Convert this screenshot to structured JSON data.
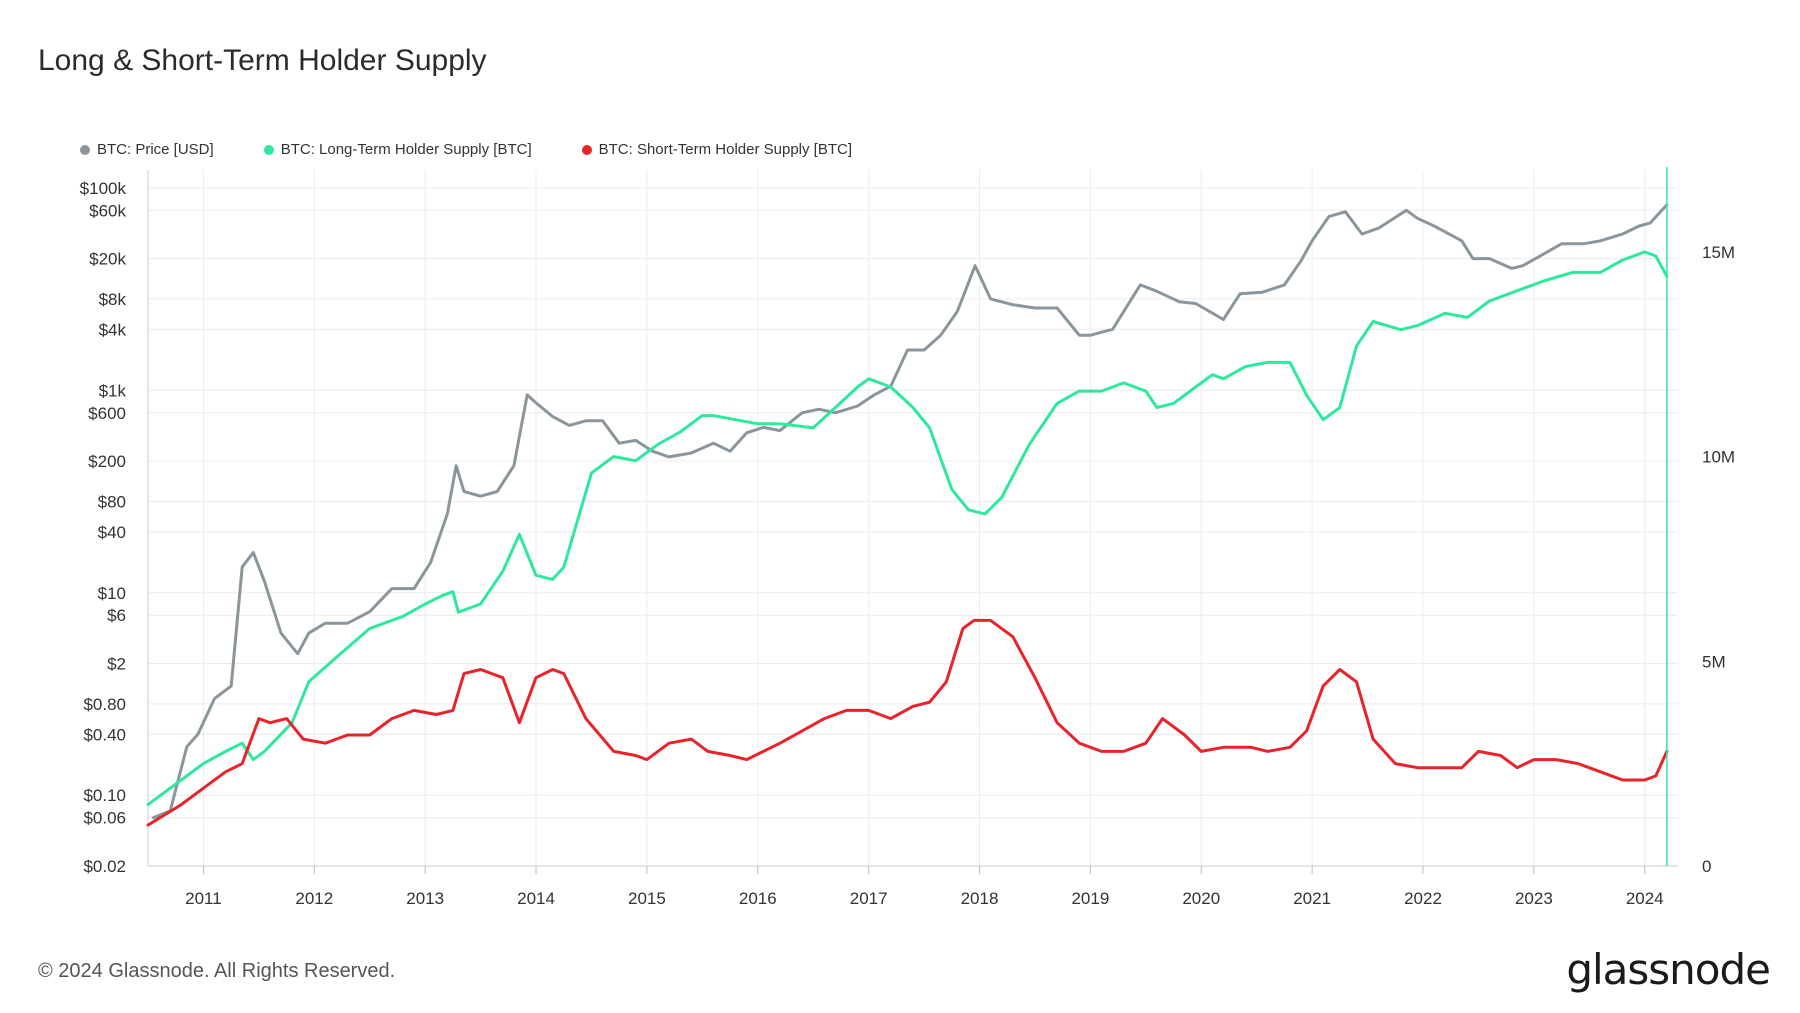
{
  "title": "Long & Short-Term Holder Supply",
  "footer": "© 2024 Glassnode. All Rights Reserved.",
  "logo_text": "glassnode",
  "chart_data": {
    "type": "line",
    "title": "Long & Short-Term Holder Supply",
    "x_range": [
      2010.5,
      2024.3
    ],
    "x_ticks": [
      "2011",
      "2012",
      "2013",
      "2014",
      "2015",
      "2016",
      "2017",
      "2018",
      "2019",
      "2020",
      "2021",
      "2022",
      "2023",
      "2024"
    ],
    "y_left": {
      "scale": "log",
      "range": [
        0.02,
        150000
      ],
      "tick_labels": [
        "$100k",
        "$60k",
        "$20k",
        "$8k",
        "$4k",
        "$1k",
        "$600",
        "$200",
        "$80",
        "$40",
        "$10",
        "$6",
        "$2",
        "$0.80",
        "$0.40",
        "$0.10",
        "$0.06",
        "$0.02"
      ],
      "tick_values": [
        100000,
        60000,
        20000,
        8000,
        4000,
        1000,
        600,
        200,
        80,
        40,
        10,
        6,
        2,
        0.8,
        0.4,
        0.1,
        0.06,
        0.02
      ]
    },
    "y_right": {
      "scale": "linear",
      "range": [
        0,
        17000000
      ],
      "tick_labels": [
        "15M",
        "10M",
        "5M",
        "0"
      ],
      "tick_values": [
        15000000,
        10000000,
        5000000,
        0
      ]
    },
    "grid": true,
    "legend_position": "top-left",
    "series": [
      {
        "name": "BTC: Price [USD]",
        "color": "#8a969c",
        "axis": "left",
        "x": [
          2010.55,
          2010.7,
          2010.85,
          2010.95,
          2011.1,
          2011.25,
          2011.35,
          2011.45,
          2011.55,
          2011.7,
          2011.85,
          2011.95,
          2012.1,
          2012.3,
          2012.5,
          2012.7,
          2012.9,
          2013.05,
          2013.2,
          2013.28,
          2013.35,
          2013.5,
          2013.65,
          2013.8,
          2013.92,
          2014.0,
          2014.15,
          2014.3,
          2014.45,
          2014.6,
          2014.75,
          2014.9,
          2015.05,
          2015.2,
          2015.4,
          2015.6,
          2015.75,
          2015.9,
          2016.05,
          2016.2,
          2016.4,
          2016.55,
          2016.7,
          2016.9,
          2017.05,
          2017.2,
          2017.35,
          2017.5,
          2017.65,
          2017.8,
          2017.96,
          2018.1,
          2018.3,
          2018.5,
          2018.7,
          2018.9,
          2019.0,
          2019.2,
          2019.45,
          2019.6,
          2019.8,
          2019.95,
          2020.2,
          2020.35,
          2020.55,
          2020.75,
          2020.9,
          2021.0,
          2021.15,
          2021.3,
          2021.45,
          2021.6,
          2021.85,
          2021.95,
          2022.1,
          2022.35,
          2022.45,
          2022.6,
          2022.8,
          2022.9,
          2023.05,
          2023.25,
          2023.45,
          2023.6,
          2023.8,
          2023.95,
          2024.05,
          2024.2
        ],
        "y": [
          0.06,
          0.07,
          0.3,
          0.4,
          0.9,
          1.2,
          18,
          25,
          13,
          4,
          2.5,
          4,
          5,
          5,
          6.5,
          11,
          11,
          20,
          60,
          180,
          100,
          90,
          100,
          180,
          900,
          750,
          550,
          450,
          500,
          500,
          300,
          320,
          250,
          220,
          240,
          300,
          250,
          380,
          430,
          400,
          600,
          650,
          600,
          700,
          900,
          1100,
          2500,
          2500,
          3500,
          6000,
          17000,
          8000,
          7000,
          6500,
          6500,
          3500,
          3500,
          4000,
          11000,
          9500,
          7500,
          7200,
          5000,
          9000,
          9300,
          11000,
          19000,
          30000,
          52000,
          58000,
          35000,
          40000,
          60000,
          50000,
          42000,
          30000,
          20000,
          20000,
          16000,
          17000,
          21000,
          28000,
          28000,
          30000,
          35000,
          42000,
          45000,
          68000
        ]
      },
      {
        "name": "BTC: Long-Term Holder Supply [BTC]",
        "color": "#2ee89e",
        "axis": "right",
        "x": [
          2010.5,
          2010.8,
          2011.0,
          2011.2,
          2011.35,
          2011.45,
          2011.55,
          2011.8,
          2011.95,
          2012.2,
          2012.5,
          2012.8,
          2013.0,
          2013.15,
          2013.25,
          2013.3,
          2013.5,
          2013.7,
          2013.85,
          2014.0,
          2014.15,
          2014.25,
          2014.5,
          2014.7,
          2014.9,
          2015.1,
          2015.3,
          2015.5,
          2015.6,
          2015.8,
          2016.0,
          2016.2,
          2016.5,
          2016.7,
          2016.9,
          2017.0,
          2017.2,
          2017.4,
          2017.55,
          2017.75,
          2017.9,
          2018.05,
          2018.2,
          2018.45,
          2018.7,
          2018.9,
          2019.1,
          2019.3,
          2019.5,
          2019.6,
          2019.75,
          2019.95,
          2020.1,
          2020.2,
          2020.4,
          2020.6,
          2020.8,
          2020.95,
          2021.1,
          2021.25,
          2021.4,
          2021.55,
          2021.8,
          2021.95,
          2022.2,
          2022.4,
          2022.6,
          2022.9,
          2023.1,
          2023.35,
          2023.6,
          2023.8,
          2024.0,
          2024.1,
          2024.2
        ],
        "y": [
          1500000,
          2100000,
          2500000,
          2800000,
          3000000,
          2600000,
          2800000,
          3500000,
          4500000,
          5100000,
          5800000,
          6100000,
          6400000,
          6600000,
          6700000,
          6200000,
          6400000,
          7200000,
          8100000,
          7100000,
          7000000,
          7300000,
          9600000,
          10000000,
          9900000,
          10300000,
          10600000,
          11000000,
          11000000,
          10900000,
          10800000,
          10800000,
          10700000,
          11200000,
          11700000,
          11900000,
          11700000,
          11200000,
          10700000,
          9200000,
          8700000,
          8600000,
          9000000,
          10300000,
          11300000,
          11600000,
          11600000,
          11800000,
          11600000,
          11200000,
          11300000,
          11700000,
          12000000,
          11900000,
          12200000,
          12300000,
          12300000,
          11500000,
          10900000,
          11200000,
          12700000,
          13300000,
          13100000,
          13200000,
          13500000,
          13400000,
          13800000,
          14100000,
          14300000,
          14500000,
          14500000,
          14800000,
          15000000,
          14900000,
          14400000
        ]
      },
      {
        "name": "BTC: Short-Term Holder Supply [BTC]",
        "color": "#e8232a",
        "axis": "right",
        "x": [
          2010.5,
          2010.8,
          2011.0,
          2011.2,
          2011.35,
          2011.5,
          2011.6,
          2011.75,
          2011.9,
          2012.1,
          2012.3,
          2012.5,
          2012.7,
          2012.9,
          2013.1,
          2013.25,
          2013.35,
          2013.5,
          2013.7,
          2013.85,
          2014.0,
          2014.15,
          2014.25,
          2014.45,
          2014.7,
          2014.9,
          2015.0,
          2015.2,
          2015.4,
          2015.55,
          2015.75,
          2015.9,
          2016.2,
          2016.4,
          2016.6,
          2016.8,
          2017.0,
          2017.2,
          2017.4,
          2017.55,
          2017.7,
          2017.85,
          2017.95,
          2018.1,
          2018.3,
          2018.5,
          2018.7,
          2018.9,
          2019.1,
          2019.3,
          2019.5,
          2019.65,
          2019.85,
          2020.0,
          2020.2,
          2020.45,
          2020.6,
          2020.8,
          2020.95,
          2021.1,
          2021.25,
          2021.4,
          2021.55,
          2021.75,
          2021.95,
          2022.15,
          2022.35,
          2022.5,
          2022.7,
          2022.85,
          2023.0,
          2023.2,
          2023.4,
          2023.6,
          2023.8,
          2024.0,
          2024.1,
          2024.2
        ],
        "y": [
          1000000,
          1500000,
          1900000,
          2300000,
          2500000,
          3600000,
          3500000,
          3600000,
          3100000,
          3000000,
          3200000,
          3200000,
          3600000,
          3800000,
          3700000,
          3800000,
          4700000,
          4800000,
          4600000,
          3500000,
          4600000,
          4800000,
          4700000,
          3600000,
          2800000,
          2700000,
          2600000,
          3000000,
          3100000,
          2800000,
          2700000,
          2600000,
          3000000,
          3300000,
          3600000,
          3800000,
          3800000,
          3600000,
          3900000,
          4000000,
          4500000,
          5800000,
          6000000,
          6000000,
          5600000,
          4600000,
          3500000,
          3000000,
          2800000,
          2800000,
          3000000,
          3600000,
          3200000,
          2800000,
          2900000,
          2900000,
          2800000,
          2900000,
          3300000,
          4400000,
          4800000,
          4500000,
          3100000,
          2500000,
          2400000,
          2400000,
          2400000,
          2800000,
          2700000,
          2400000,
          2600000,
          2600000,
          2500000,
          2300000,
          2100000,
          2100000,
          2200000,
          2800000
        ]
      }
    ]
  }
}
